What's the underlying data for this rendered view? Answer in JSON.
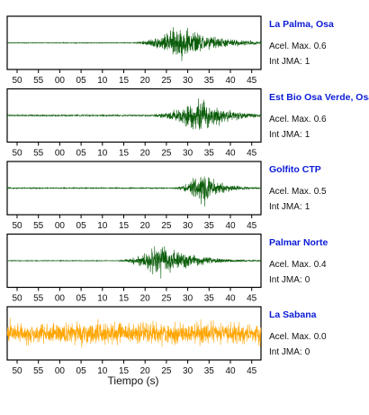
{
  "chart_data": {
    "type": "line",
    "xlabel": "Tiempo (s)",
    "x_tick_labels": [
      "50",
      "55",
      "00",
      "05",
      "10",
      "15",
      "20",
      "25",
      "30",
      "35",
      "40",
      "45"
    ],
    "grid": false,
    "panels": [
      {
        "station": "La Palma, Osa",
        "accel_label": "Acel. Max.",
        "accel_max": "0.6",
        "jma_label": "Int JMA:",
        "jma_int": "1",
        "color": "#0a5c0a",
        "signal": {
          "onset": 15.5,
          "peak": 29.0,
          "noise": 0.02,
          "amplitude": 0.95,
          "rise": 9,
          "decay": 8
        }
      },
      {
        "station": "Est Bio Osa Verde, Osa",
        "accel_label": "Acel. Max.",
        "accel_max": "0.6",
        "jma_label": "Int JMA:",
        "jma_int": "1",
        "color": "#0a5c0a",
        "signal": {
          "onset": 18.0,
          "peak": 34.0,
          "noise": 0.04,
          "amplitude": 0.95,
          "rise": 9,
          "decay": 6
        }
      },
      {
        "station": "Golfito CTP",
        "accel_label": "Acel. Max.",
        "accel_max": "0.5",
        "jma_label": "Int JMA:",
        "jma_int": "1",
        "color": "#0a5c0a",
        "signal": {
          "onset": 26.0,
          "peak": 34.5,
          "noise": 0.03,
          "amplitude": 0.95,
          "rise": 4,
          "decay": 4
        }
      },
      {
        "station": "Palmar Norte",
        "accel_label": "Acel. Max.",
        "accel_max": "0.4",
        "jma_label": "Int JMA:",
        "jma_int": "0",
        "color": "#0a5c0a",
        "signal": {
          "onset": 12.5,
          "peak": 24.5,
          "noise": 0.02,
          "amplitude": 0.95,
          "rise": 8,
          "decay": 7
        }
      },
      {
        "station": "La Sabana",
        "accel_label": "Acel. Max.",
        "accel_max": "0.0",
        "jma_label": "Int JMA:",
        "jma_int": "0",
        "color": "#ffa500",
        "signal": {
          "onset": 0,
          "peak": 20,
          "noise": 0.55,
          "amplitude": 0.55,
          "rise": 1,
          "decay": 1000
        }
      }
    ]
  }
}
